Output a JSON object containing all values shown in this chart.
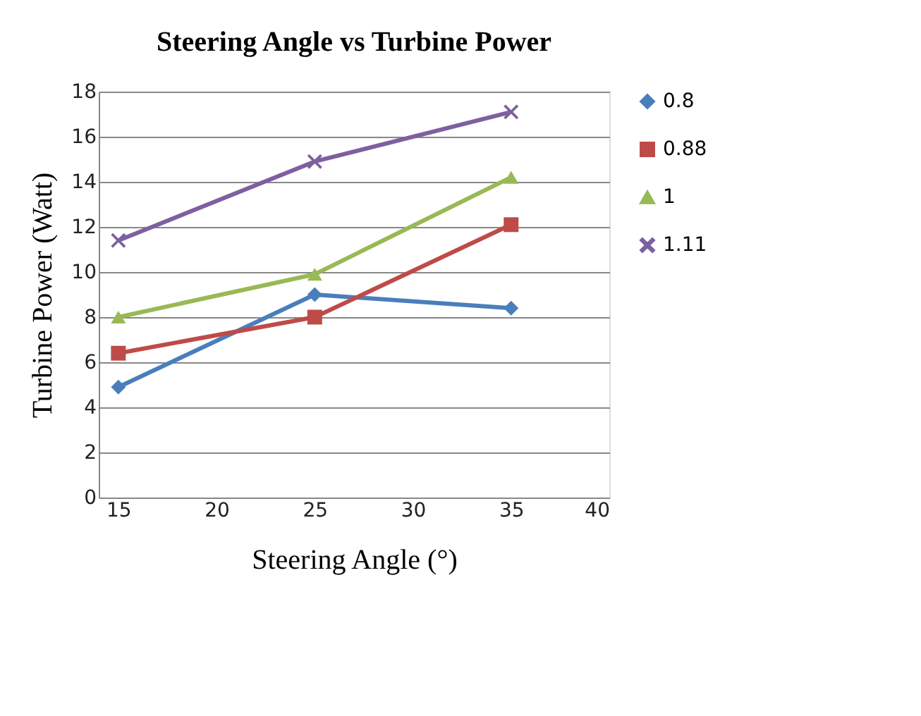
{
  "chart_data": {
    "type": "line",
    "title": "Steering Angle vs Turbine Power",
    "xlabel": "Steering Angle (°)",
    "ylabel": "Turbine Power (Watt)",
    "x": [
      15,
      25,
      35
    ],
    "series": [
      {
        "name": "0.8",
        "color": "#4a7ebb",
        "marker": "diamond",
        "values": [
          4.9,
          9.0,
          8.4
        ]
      },
      {
        "name": "0.88",
        "color": "#be4b48",
        "marker": "square",
        "values": [
          6.4,
          8.0,
          12.1
        ]
      },
      {
        "name": "1",
        "color": "#98b954",
        "marker": "triangle",
        "values": [
          8.0,
          9.9,
          14.2
        ]
      },
      {
        "name": "1.11",
        "color": "#7d60a0",
        "marker": "cross",
        "values": [
          11.4,
          14.9,
          17.1
        ]
      }
    ],
    "xlim": [
      14,
      40
    ],
    "xticks": [
      15,
      20,
      25,
      30,
      35,
      40
    ],
    "ylim": [
      0,
      18
    ],
    "yticks": [
      0,
      2,
      4,
      6,
      8,
      10,
      12,
      14,
      16,
      18
    ],
    "grid": "y",
    "legend": "right",
    "line_style": "solid"
  }
}
